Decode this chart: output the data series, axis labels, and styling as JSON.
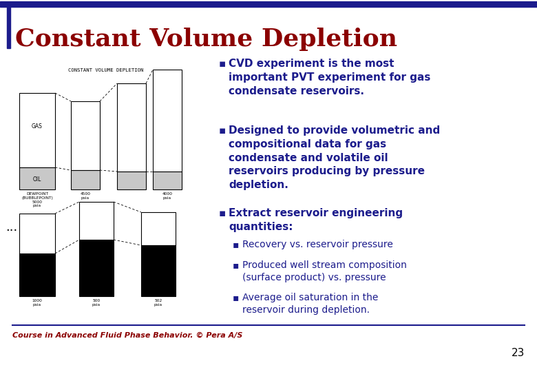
{
  "title": "Constant Volume Depletion",
  "title_color": "#8B0000",
  "title_fontsize": 26,
  "background_color": "#FFFFFF",
  "border_color": "#1C1C8C",
  "bullet_color": "#1C1C8C",
  "footer_text": "Course in Advanced Fluid Phase Behavior. © Pera A/S",
  "footer_color": "#8B0000",
  "page_number": "23",
  "image_label": "CONSTANT VOLUME DEPLETION",
  "top_bar_color": "#1C1C8C",
  "bottom_bar_color": "#1C1C8C"
}
